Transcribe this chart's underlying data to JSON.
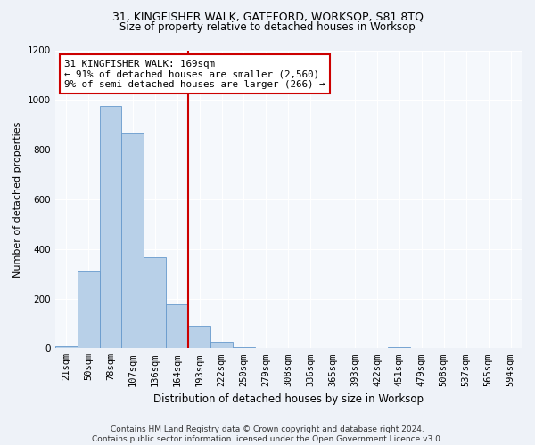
{
  "title1": "31, KINGFISHER WALK, GATEFORD, WORKSOP, S81 8TQ",
  "title2": "Size of property relative to detached houses in Worksop",
  "xlabel": "Distribution of detached houses by size in Worksop",
  "ylabel": "Number of detached properties",
  "bar_labels": [
    "21sqm",
    "50sqm",
    "78sqm",
    "107sqm",
    "136sqm",
    "164sqm",
    "193sqm",
    "222sqm",
    "250sqm",
    "279sqm",
    "308sqm",
    "336sqm",
    "365sqm",
    "393sqm",
    "422sqm",
    "451sqm",
    "479sqm",
    "508sqm",
    "537sqm",
    "565sqm",
    "594sqm"
  ],
  "bar_values": [
    10,
    310,
    975,
    870,
    365,
    175,
    90,
    25,
    5,
    0,
    0,
    0,
    0,
    0,
    0,
    5,
    0,
    0,
    0,
    0,
    0
  ],
  "bar_color": "#b8d0e8",
  "bar_edge_color": "#6699cc",
  "vline_x": 5.5,
  "vline_color": "#cc0000",
  "annotation_text": "31 KINGFISHER WALK: 169sqm\n← 91% of detached houses are smaller (2,560)\n9% of semi-detached houses are larger (266) →",
  "annotation_box_color": "#ffffff",
  "annotation_box_edge_color": "#cc0000",
  "ylim": [
    0,
    1200
  ],
  "yticks": [
    0,
    200,
    400,
    600,
    800,
    1000,
    1200
  ],
  "footnote": "Contains HM Land Registry data © Crown copyright and database right 2024.\nContains public sector information licensed under the Open Government Licence v3.0.",
  "bg_color": "#eef2f8",
  "plot_bg_color": "#f5f8fc",
  "title1_fontsize": 9.0,
  "title2_fontsize": 8.5,
  "ylabel_fontsize": 8.0,
  "xlabel_fontsize": 8.5,
  "tick_fontsize": 7.5,
  "footnote_fontsize": 6.5
}
